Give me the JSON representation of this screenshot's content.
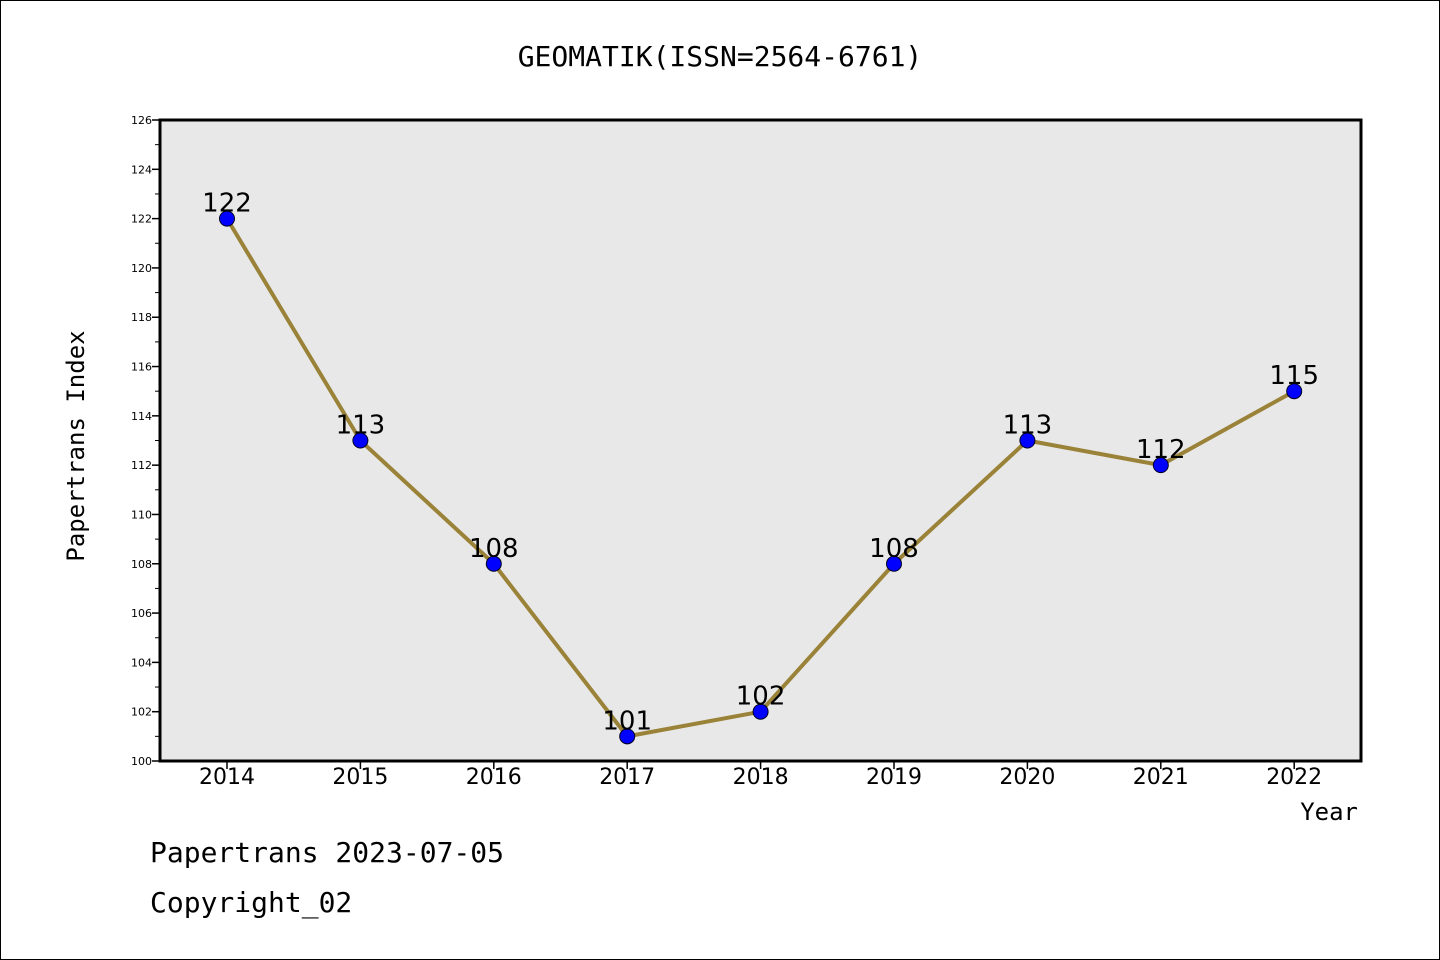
{
  "chart_data": {
    "type": "line",
    "title": "GEOMATIK(ISSN=2564-6761)",
    "xlabel": "Year",
    "ylabel": "Papertrans Index",
    "categories": [
      "2014",
      "2015",
      "2016",
      "2017",
      "2018",
      "2019",
      "2020",
      "2021",
      "2022"
    ],
    "series": [
      {
        "values": [
          122,
          113,
          108,
          101,
          102,
          108,
          113,
          112,
          115
        ]
      }
    ],
    "data_labels": [
      "122",
      "113",
      "108",
      "101",
      "102",
      "108",
      "113",
      "112",
      "115"
    ],
    "ylim": [
      100,
      126
    ],
    "yticks": [
      "100",
      "102",
      "104",
      "106",
      "108",
      "110",
      "112",
      "114",
      "116",
      "118",
      "120",
      "122",
      "124",
      "126"
    ],
    "grid": false,
    "legend": "none",
    "colors": {
      "line": "#9a8338",
      "marker": "#0000ff",
      "plot_background": "#e8e8e8"
    }
  },
  "footer": {
    "line1": "Papertrans 2023-07-05",
    "line2": "Copyright_02"
  }
}
